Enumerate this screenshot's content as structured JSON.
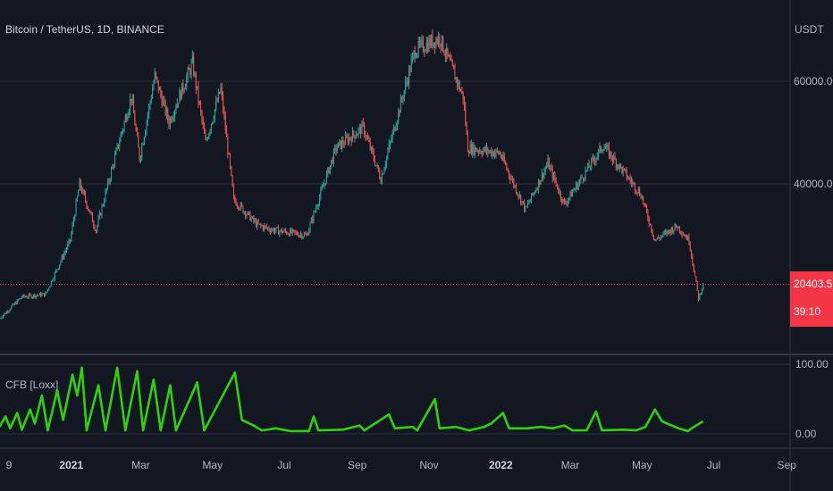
{
  "header": {
    "symbol_title": "Bitcoin / TetherUS, 1D, BINANCE",
    "currency": "USDT"
  },
  "last_price": {
    "value": "20403.52",
    "countdown": "39:10",
    "color": "#f23645"
  },
  "indicator": {
    "label": "CFB [Loxx]",
    "color": "#2fd10f"
  },
  "colors": {
    "background": "#131722",
    "up_candle": "#26a69a",
    "down_candle": "#ef5350",
    "grid": "#2a2e39",
    "text": "#b2b5be"
  },
  "chart_data": [
    {
      "type": "candlestick",
      "title": "Bitcoin / TetherUS, 1D, BINANCE",
      "y_axis_label": "USDT",
      "y_ticks": [
        "60000.00",
        "40000.00"
      ],
      "ylim": [
        10000,
        73000
      ],
      "x_ticks": [
        "9",
        "2021",
        "Mar",
        "May",
        "Jul",
        "Sep",
        "Nov",
        "2022",
        "Mar",
        "May",
        "Jul",
        "Sep"
      ],
      "x_tick_dates": [
        "2020-11-09",
        "2021-01-01",
        "2021-03-01",
        "2021-05-01",
        "2021-07-01",
        "2021-09-01",
        "2021-11-01",
        "2022-01-01",
        "2022-03-01",
        "2022-05-01",
        "2022-07-01",
        "2022-09-01"
      ],
      "close_path": [
        [
          "2020-11-01",
          13800
        ],
        [
          "2020-11-20",
          18000
        ],
        [
          "2020-12-10",
          18500
        ],
        [
          "2020-12-31",
          29000
        ],
        [
          "2021-01-08",
          40000
        ],
        [
          "2021-01-22",
          31000
        ],
        [
          "2021-02-08",
          46000
        ],
        [
          "2021-02-21",
          57000
        ],
        [
          "2021-02-28",
          45000
        ],
        [
          "2021-03-13",
          61000
        ],
        [
          "2021-03-25",
          52000
        ],
        [
          "2021-04-14",
          63500
        ],
        [
          "2021-04-25",
          48000
        ],
        [
          "2021-05-08",
          58500
        ],
        [
          "2021-05-19",
          37000
        ],
        [
          "2021-06-08",
          32000
        ],
        [
          "2021-06-22",
          31000
        ],
        [
          "2021-07-20",
          30000
        ],
        [
          "2021-08-14",
          47000
        ],
        [
          "2021-09-06",
          51000
        ],
        [
          "2021-09-21",
          41000
        ],
        [
          "2021-10-20",
          66000
        ],
        [
          "2021-11-10",
          68500
        ],
        [
          "2021-11-30",
          57000
        ],
        [
          "2021-12-04",
          47000
        ],
        [
          "2021-12-31",
          46000
        ],
        [
          "2022-01-22",
          35000
        ],
        [
          "2022-02-10",
          44000
        ],
        [
          "2022-02-24",
          36000
        ],
        [
          "2022-03-29",
          47500
        ],
        [
          "2022-04-30",
          38000
        ],
        [
          "2022-05-12",
          29000
        ],
        [
          "2022-05-31",
          31800
        ],
        [
          "2022-06-10",
          29000
        ],
        [
          "2022-06-18",
          17700
        ],
        [
          "2022-06-22",
          20403.52
        ]
      ]
    },
    {
      "type": "line",
      "name": "CFB [Loxx]",
      "y_ticks": [
        "100.00",
        "0.00"
      ],
      "ylim": [
        0,
        100
      ],
      "series": [
        {
          "name": "CFB [Loxx]",
          "points": [
            [
              "2020-11-01",
              10
            ],
            [
              "2020-11-06",
              25
            ],
            [
              "2020-11-10",
              8
            ],
            [
              "2020-11-16",
              30
            ],
            [
              "2020-11-20",
              6
            ],
            [
              "2020-11-27",
              35
            ],
            [
              "2020-12-01",
              15
            ],
            [
              "2020-12-07",
              55
            ],
            [
              "2020-12-12",
              5
            ],
            [
              "2020-12-20",
              62
            ],
            [
              "2020-12-25",
              20
            ],
            [
              "2021-01-02",
              85
            ],
            [
              "2021-01-06",
              55
            ],
            [
              "2021-01-10",
              95
            ],
            [
              "2021-01-14",
              5
            ],
            [
              "2021-01-24",
              70
            ],
            [
              "2021-01-30",
              5
            ],
            [
              "2021-02-09",
              95
            ],
            [
              "2021-02-16",
              5
            ],
            [
              "2021-02-26",
              90
            ],
            [
              "2021-03-03",
              5
            ],
            [
              "2021-03-12",
              78
            ],
            [
              "2021-03-18",
              5
            ],
            [
              "2021-03-26",
              70
            ],
            [
              "2021-03-31",
              5
            ],
            [
              "2021-04-18",
              74
            ],
            [
              "2021-04-24",
              5
            ],
            [
              "2021-05-20",
              88
            ],
            [
              "2021-05-26",
              20
            ],
            [
              "2021-06-05",
              12
            ],
            [
              "2021-06-12",
              5
            ],
            [
              "2021-06-24",
              8
            ],
            [
              "2021-07-06",
              4
            ],
            [
              "2021-07-22",
              4
            ],
            [
              "2021-07-26",
              25
            ],
            [
              "2021-07-30",
              5
            ],
            [
              "2021-08-20",
              6
            ],
            [
              "2021-09-03",
              12
            ],
            [
              "2021-09-07",
              5
            ],
            [
              "2021-09-28",
              28
            ],
            [
              "2021-10-03",
              8
            ],
            [
              "2021-10-18",
              10
            ],
            [
              "2021-10-22",
              5
            ],
            [
              "2021-11-06",
              50
            ],
            [
              "2021-11-10",
              8
            ],
            [
              "2021-11-24",
              10
            ],
            [
              "2021-12-05",
              5
            ],
            [
              "2021-12-18",
              10
            ],
            [
              "2021-12-24",
              15
            ],
            [
              "2022-01-03",
              30
            ],
            [
              "2022-01-08",
              8
            ],
            [
              "2022-01-24",
              8
            ],
            [
              "2022-02-04",
              10
            ],
            [
              "2022-02-14",
              8
            ],
            [
              "2022-02-24",
              12
            ],
            [
              "2022-03-03",
              5
            ],
            [
              "2022-03-15",
              5
            ],
            [
              "2022-03-23",
              32
            ],
            [
              "2022-03-28",
              5
            ],
            [
              "2022-04-16",
              6
            ],
            [
              "2022-04-26",
              5
            ],
            [
              "2022-05-04",
              10
            ],
            [
              "2022-05-12",
              35
            ],
            [
              "2022-05-18",
              18
            ],
            [
              "2022-06-01",
              8
            ],
            [
              "2022-06-09",
              4
            ],
            [
              "2022-06-14",
              10
            ],
            [
              "2022-06-22",
              18
            ]
          ]
        }
      ]
    }
  ]
}
